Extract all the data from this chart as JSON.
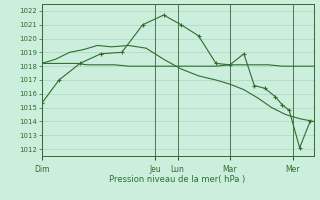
{
  "background_color": "#cceedd",
  "grid_color": "#aaccbb",
  "line_color": "#2d6e2d",
  "xlabel": "Pression niveau de la mer( hPa )",
  "ylim": [
    1011.5,
    1022.5
  ],
  "yticks": [
    1012,
    1013,
    1014,
    1015,
    1016,
    1017,
    1018,
    1019,
    1020,
    1021,
    1022
  ],
  "day_labels": [
    "Dim",
    "Jeu",
    "Lun",
    "Mar",
    "Mer"
  ],
  "day_positions": [
    0,
    65,
    78,
    108,
    144
  ],
  "xlim": [
    0,
    156
  ],
  "series2_x": [
    0,
    8,
    14,
    20,
    26,
    34,
    42,
    50,
    58,
    65,
    72,
    78,
    85,
    92,
    100,
    108,
    114,
    122,
    130,
    138,
    144,
    150,
    156
  ],
  "series2_y": [
    1018.2,
    1018.2,
    1018.2,
    1018.2,
    1018.1,
    1018.1,
    1018.1,
    1018.0,
    1018.0,
    1018.0,
    1018.0,
    1018.0,
    1018.0,
    1018.0,
    1018.0,
    1018.1,
    1018.1,
    1018.1,
    1018.1,
    1018.0,
    1018.0,
    1018.0,
    1018.0
  ],
  "series3_x": [
    0,
    8,
    16,
    24,
    32,
    40,
    50,
    60,
    70,
    80,
    90,
    100,
    108,
    116,
    124,
    132,
    140,
    148,
    156
  ],
  "series3_y": [
    1018.2,
    1018.5,
    1019.0,
    1019.2,
    1019.5,
    1019.4,
    1019.5,
    1019.3,
    1018.5,
    1017.8,
    1017.3,
    1017.0,
    1016.7,
    1016.3,
    1015.7,
    1015.0,
    1014.5,
    1014.2,
    1014.0
  ],
  "series4_x": [
    0,
    10,
    22,
    34,
    46,
    58,
    70,
    80,
    90,
    100,
    108,
    116,
    122,
    128,
    134,
    138,
    142,
    148,
    154
  ],
  "series4_y": [
    1015.3,
    1017.0,
    1018.2,
    1018.9,
    1019.0,
    1021.0,
    1021.7,
    1021.0,
    1020.2,
    1018.2,
    1018.1,
    1018.9,
    1016.6,
    1016.4,
    1015.8,
    1015.2,
    1014.8,
    1012.1,
    1014.0
  ]
}
